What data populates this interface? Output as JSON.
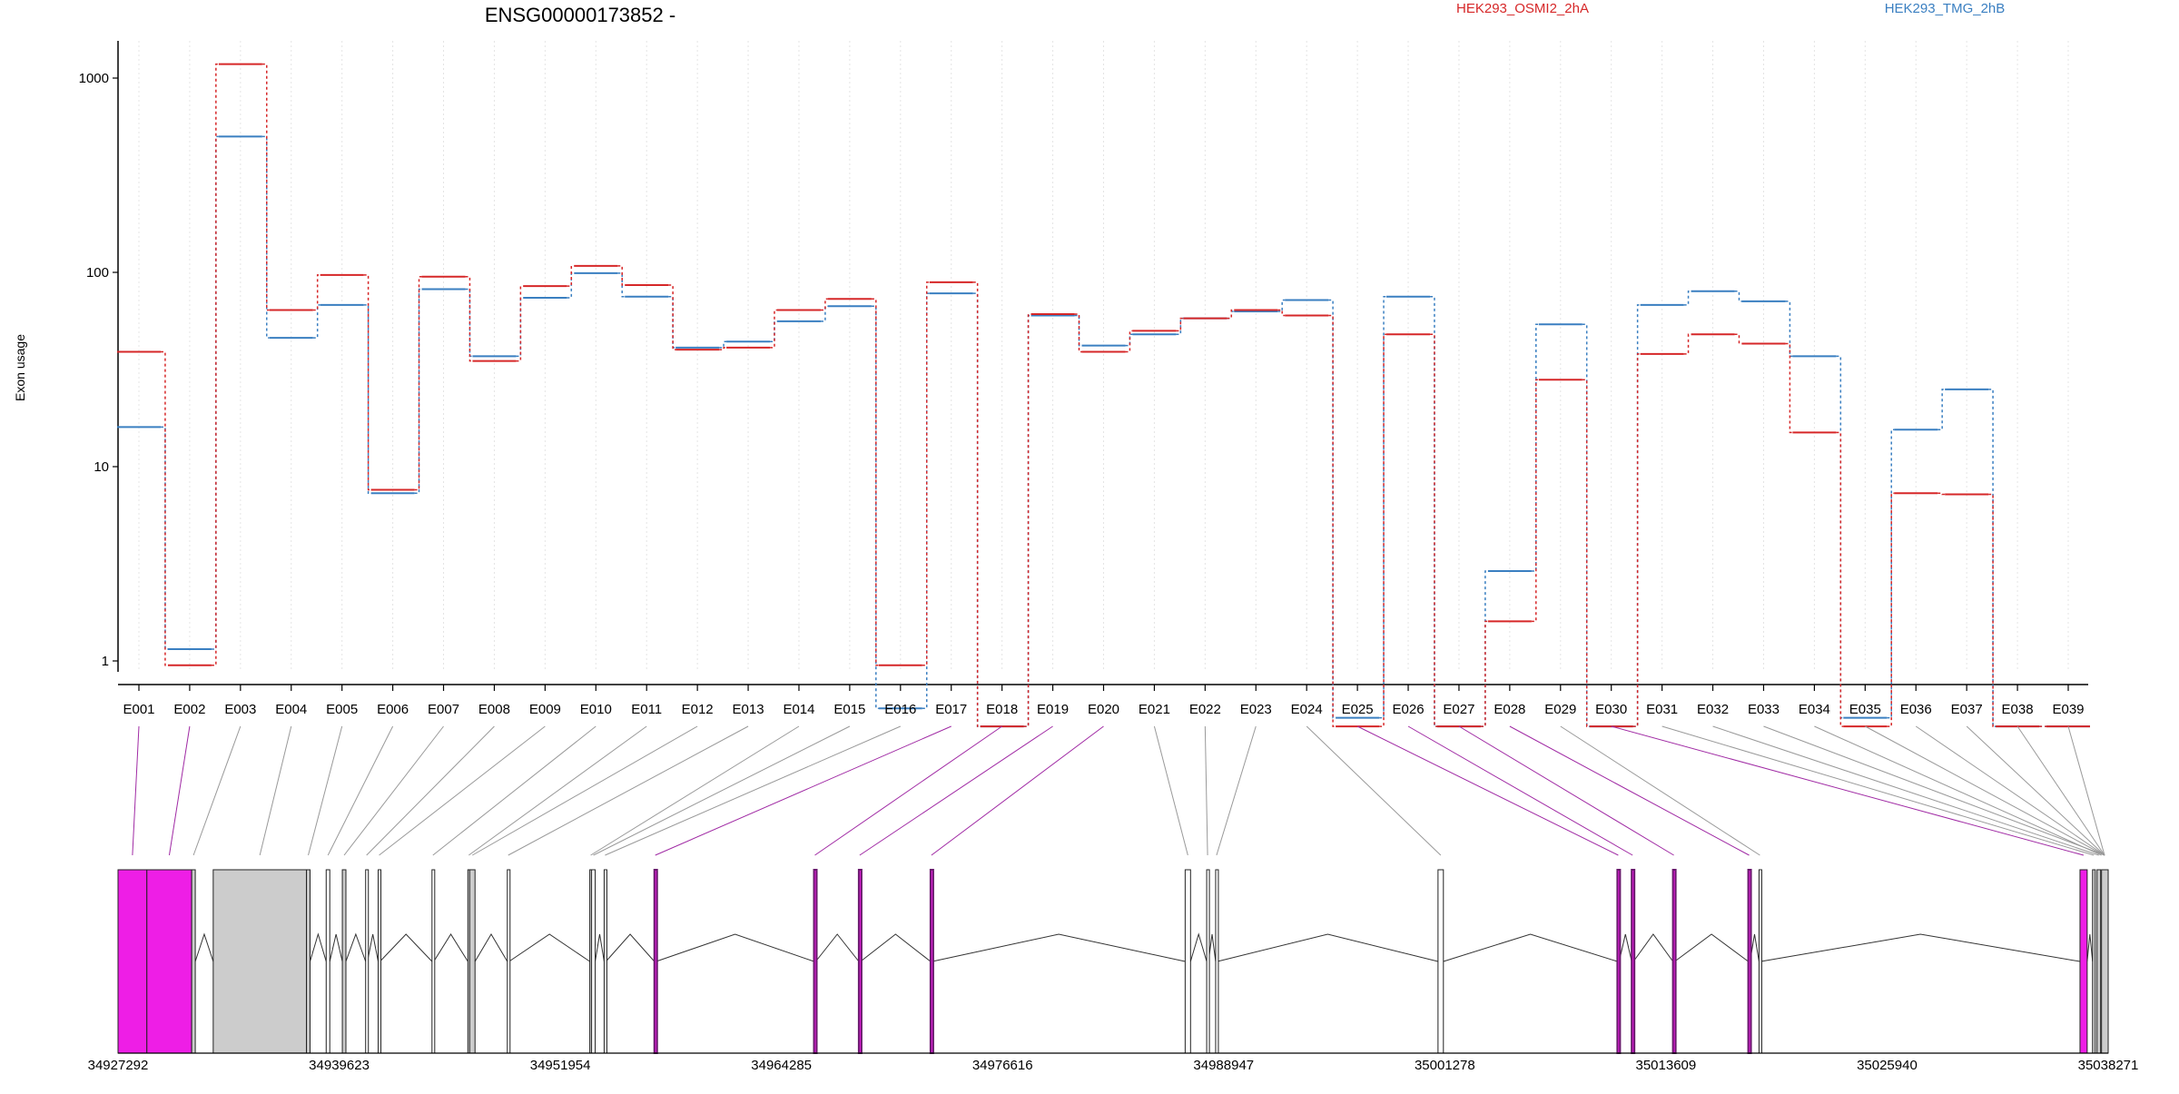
{
  "chart_data": {
    "type": "line",
    "title": "ENSG00000173852 -",
    "ylabel": "Exon usage",
    "yscale": "log",
    "ylim": [
      0.37,
      1600
    ],
    "yticks": [
      1,
      10,
      100,
      1000
    ],
    "legend_placement": "top",
    "grid": "vertical dotted",
    "categories": [
      "E001",
      "E002",
      "E003",
      "E004",
      "E005",
      "E006",
      "E007",
      "E008",
      "E009",
      "E010",
      "E011",
      "E012",
      "E013",
      "E014",
      "E015",
      "E016",
      "E017",
      "E018",
      "E019",
      "E020",
      "E021",
      "E022",
      "E023",
      "E024",
      "E025",
      "E026",
      "E027",
      "E028",
      "E029",
      "E030",
      "E031",
      "E032",
      "E033",
      "E034",
      "E035",
      "E036",
      "E037",
      "E038",
      "E039"
    ],
    "series": [
      {
        "name": "HEK293_OSMI2_2hA",
        "color": "#d62728",
        "values": [
          39,
          0.95,
          1180,
          64,
          97,
          7.6,
          95,
          35,
          85,
          108,
          86,
          40,
          41,
          64,
          73,
          0.95,
          89,
          0.46,
          61,
          39,
          50,
          58,
          64,
          60,
          0.46,
          48,
          0.46,
          1.6,
          28,
          0.46,
          38,
          48,
          43,
          15,
          0.46,
          7.3,
          7.2,
          0.46,
          0.46
        ]
      },
      {
        "name": "HEK293_TMG_2hB",
        "color": "#3a7fc1",
        "values": [
          16,
          1.15,
          500,
          46,
          68,
          7.3,
          82,
          37,
          74,
          99,
          75,
          41,
          44,
          56,
          67,
          0.57,
          78,
          0.46,
          60,
          42,
          48,
          58,
          63,
          72,
          0.51,
          75,
          0.46,
          2.9,
          54,
          0.46,
          68,
          80,
          71,
          37,
          0.51,
          15.5,
          25,
          0.46,
          0.46
        ]
      }
    ],
    "genomic_axis_ticks": [
      "34927292",
      "34939623",
      "34951954",
      "34964285",
      "34976616",
      "34988947",
      "35001278",
      "35013609",
      "35025940",
      "35038271"
    ],
    "exon_highlight_colors": {
      "significant": "#ee1ee6",
      "normal": "#cccccc",
      "connector_significant": "#a02aa4",
      "connector_normal": "#999999"
    },
    "exons": [
      {
        "id": "E001",
        "start": 34927292,
        "end": 34928900,
        "fill": "#ee1ee6"
      },
      {
        "id": "E002",
        "start": 34928900,
        "end": 34931400,
        "fill": "#ee1ee6"
      },
      {
        "id": "E003",
        "start": 34931400,
        "end": 34931600,
        "fill": "#cccccc"
      },
      {
        "id": "E004",
        "start": 34932600,
        "end": 34937800,
        "fill": "#cccccc"
      },
      {
        "id": "E005",
        "start": 34937800,
        "end": 34938000,
        "fill": "#cccccc"
      },
      {
        "id": "E006",
        "start": 34938900,
        "end": 34939100,
        "fill": "#ffffff"
      },
      {
        "id": "E007",
        "start": 34939800,
        "end": 34940000,
        "fill": "#cccccc"
      },
      {
        "id": "E008",
        "start": 34941100,
        "end": 34941200,
        "fill": "#ffffff"
      },
      {
        "id": "E009",
        "start": 34941800,
        "end": 34941900,
        "fill": "#ffffff"
      },
      {
        "id": "E010",
        "start": 34944800,
        "end": 34944900,
        "fill": "#ffffff"
      },
      {
        "id": "E011",
        "start": 34946800,
        "end": 34946900,
        "fill": "#cccccc"
      },
      {
        "id": "E012",
        "start": 34946900,
        "end": 34947200,
        "fill": "#cccccc"
      },
      {
        "id": "E013",
        "start": 34949000,
        "end": 34949100,
        "fill": "#ffffff"
      },
      {
        "id": "E014",
        "start": 34953600,
        "end": 34953700,
        "fill": "#cccccc"
      },
      {
        "id": "E015",
        "start": 34953700,
        "end": 34953900,
        "fill": "#ffffff"
      },
      {
        "id": "E016",
        "start": 34954400,
        "end": 34954500,
        "fill": "#ffffff"
      },
      {
        "id": "E017",
        "start": 34957200,
        "end": 34957300,
        "fill": "#ee1ee6"
      },
      {
        "id": "E018",
        "start": 34966100,
        "end": 34966200,
        "fill": "#ee1ee6"
      },
      {
        "id": "E019",
        "start": 34968600,
        "end": 34968700,
        "fill": "#ee1ee6"
      },
      {
        "id": "E020",
        "start": 34972600,
        "end": 34972700,
        "fill": "#ee1ee6"
      },
      {
        "id": "E021",
        "start": 34986800,
        "end": 34987100,
        "fill": "#ffffff"
      },
      {
        "id": "E022",
        "start": 34988000,
        "end": 34988100,
        "fill": "#ffffff"
      },
      {
        "id": "E023",
        "start": 34988500,
        "end": 34988600,
        "fill": "#ffffff"
      },
      {
        "id": "E024",
        "start": 35000900,
        "end": 35001200,
        "fill": "#ffffff"
      },
      {
        "id": "E025",
        "start": 35010900,
        "end": 35011000,
        "fill": "#ee1ee6"
      },
      {
        "id": "E026",
        "start": 35011700,
        "end": 35011800,
        "fill": "#ee1ee6"
      },
      {
        "id": "E027",
        "start": 35014000,
        "end": 35014100,
        "fill": "#ee1ee6"
      },
      {
        "id": "E028",
        "start": 35018200,
        "end": 35018300,
        "fill": "#ee1ee6"
      },
      {
        "id": "E029",
        "start": 35018800,
        "end": 35018900,
        "fill": "#ffffff"
      },
      {
        "id": "E030",
        "start": 35036700,
        "end": 35037100,
        "fill": "#ee1ee6"
      },
      {
        "id": "E031",
        "start": 35037400,
        "end": 35037550,
        "fill": "#cccccc"
      },
      {
        "id": "E032",
        "start": 35037650,
        "end": 35037850,
        "fill": "#cccccc"
      },
      {
        "id": "E033",
        "start": 35037900,
        "end": 35038271,
        "fill": "#cccccc"
      }
    ]
  }
}
